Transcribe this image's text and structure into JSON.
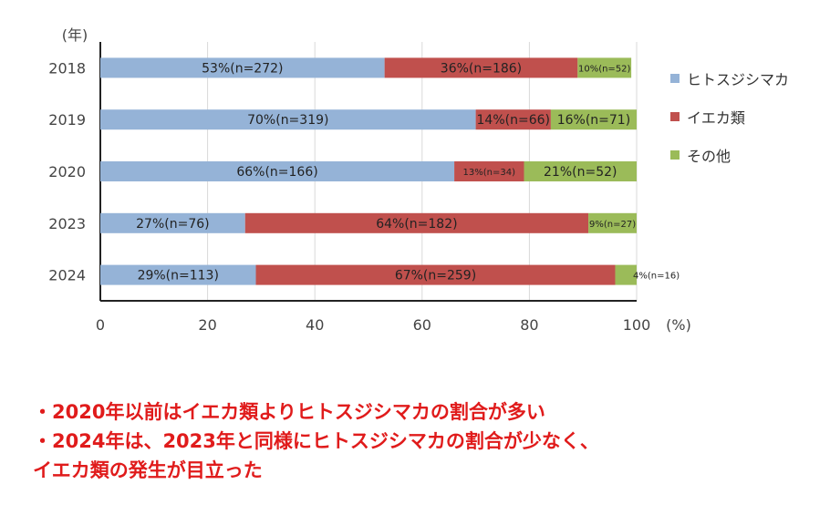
{
  "chart_data": {
    "type": "bar",
    "orientation": "horizontal",
    "stacked": true,
    "categories": [
      "2018",
      "2019",
      "2020",
      "2023",
      "2024"
    ],
    "y_unit_label": "(年)",
    "x_unit_label": "(%)",
    "xlim": [
      0,
      100
    ],
    "x_ticks": [
      "0",
      "20",
      "40",
      "60",
      "80",
      "100"
    ],
    "grid": true,
    "legend_position": "right",
    "series": [
      {
        "name": "ヒトスジシマカ",
        "color": "#95b3d7",
        "values": [
          53,
          70,
          66,
          27,
          29
        ],
        "labels": [
          "53%(n=272)",
          "70%(n=319)",
          "66%(n=166)",
          "27%(n=76)",
          "29%(n=113)"
        ]
      },
      {
        "name": "イエカ類",
        "color": "#c0504d",
        "values": [
          36,
          14,
          13,
          64,
          67
        ],
        "labels": [
          "36%(n=186)",
          "14%(n=66)",
          "13%(n=34)",
          "64%(n=182)",
          "67%(n=259)"
        ]
      },
      {
        "name": "その他",
        "color": "#9bbb59",
        "values": [
          10,
          16,
          21,
          9,
          4
        ],
        "labels": [
          "10%(n=52)",
          "16%(n=71)",
          "21%(n=52)",
          "9%(n=27)",
          "4%(n=16)"
        ]
      }
    ]
  },
  "notes": [
    "・2020年以前はイエカ類よりヒトスジシマカの割合が多い",
    "・2024年は、2023年と同様にヒトスジシマカの割合が少なく、",
    "イエカ類の発生が目立った"
  ]
}
